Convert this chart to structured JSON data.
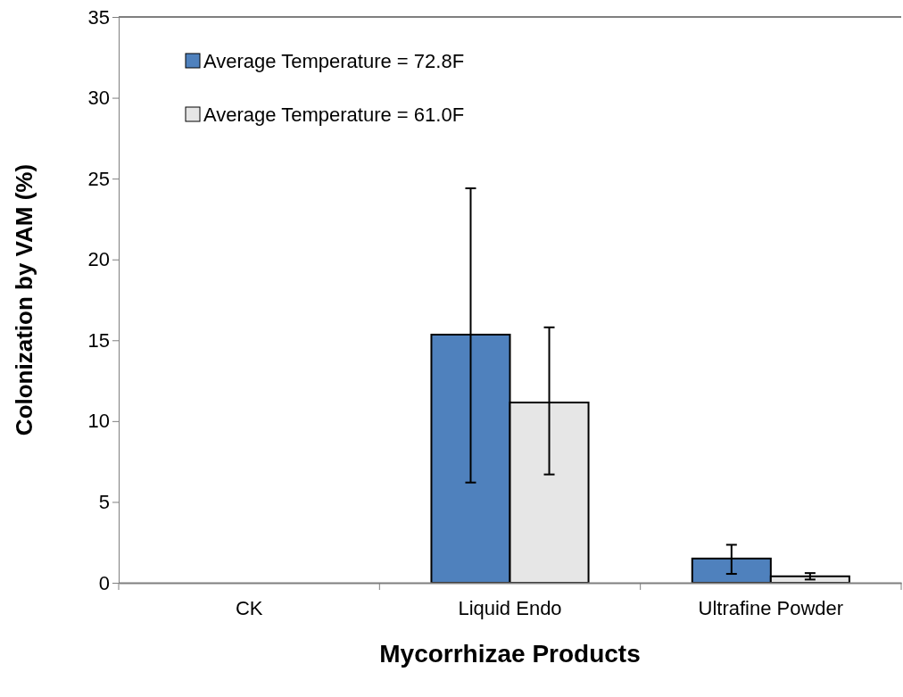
{
  "chart_data": {
    "type": "bar",
    "xlabel": "Mycorrhizae Products",
    "ylabel": "Colonization by VAM  (%)",
    "categories": [
      "CK",
      "Liquid Endo",
      "Ultrafine Powder"
    ],
    "series": [
      {
        "name": "Average Temperature = 72.8F",
        "color": "#4f81bd",
        "values": [
          0,
          15.35,
          1.5
        ],
        "errors": [
          null,
          [
            6.2,
            24.4
          ],
          [
            0.55,
            2.35
          ]
        ]
      },
      {
        "name": "Average Temperature = 61.0F",
        "color": "#e6e6e6",
        "values": [
          0,
          11.15,
          0.4
        ],
        "errors": [
          null,
          [
            6.7,
            15.8
          ],
          [
            0.2,
            0.6
          ]
        ]
      }
    ],
    "ylim": [
      0,
      35
    ],
    "yticks": [
      0,
      5,
      10,
      15,
      20,
      25,
      30,
      35
    ],
    "grid": false,
    "legend": "top left"
  }
}
